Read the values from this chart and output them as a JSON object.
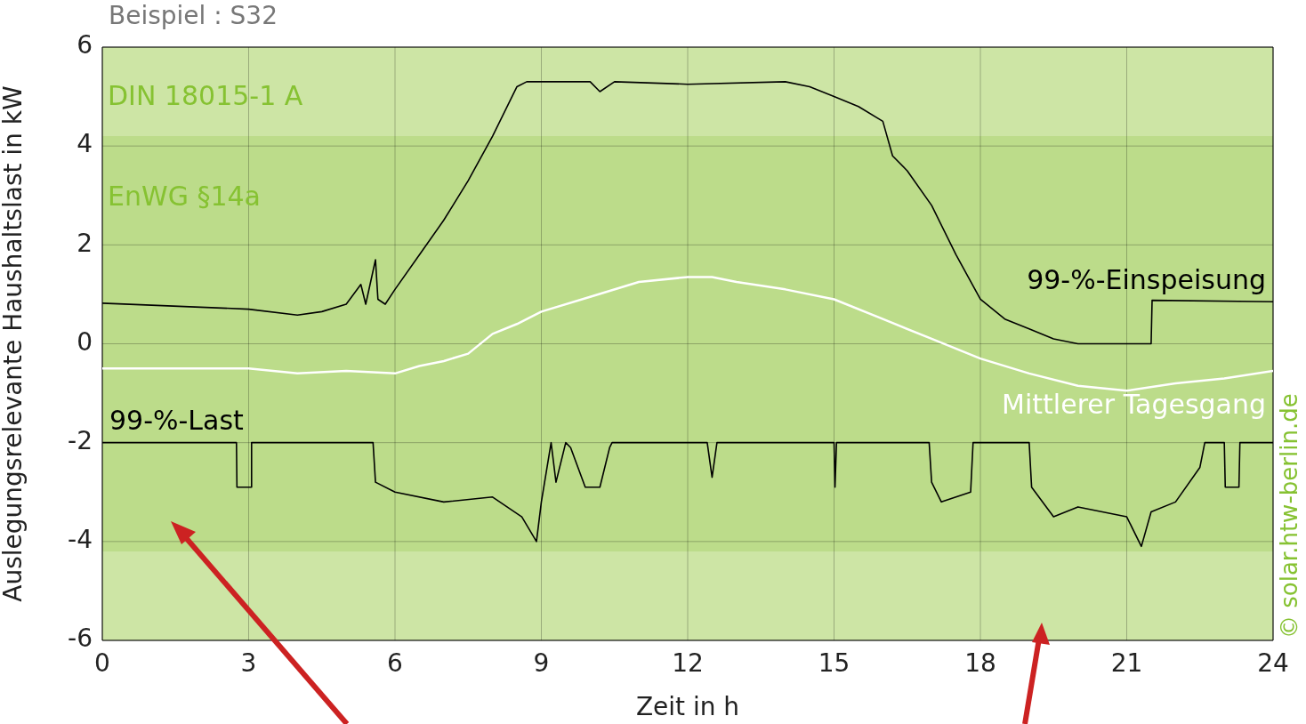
{
  "chart_data": {
    "type": "line",
    "title": "Beispiel : S32",
    "xlabel": "Zeit in h",
    "ylabel": "Auslegungsrelevante Haushaltslast in kW",
    "xlim": [
      0,
      24
    ],
    "xticks": [
      0,
      3,
      6,
      9,
      12,
      15,
      18,
      21,
      24
    ],
    "ylim": [
      -6,
      6
    ],
    "yticks": [
      -6,
      -4,
      -2,
      0,
      2,
      4,
      6
    ],
    "grid": true,
    "legend": false,
    "marker": "none",
    "bands": [
      {
        "axis": "y",
        "from": -6,
        "to": 6,
        "label": "DIN 18015-1 A",
        "color": "#cde5a5"
      },
      {
        "axis": "y",
        "from": -4.2,
        "to": 4.2,
        "label": "EnWG §14a",
        "color": "#bcdc8a"
      }
    ],
    "annotations": [
      "© solar.htw-berlin.de"
    ],
    "series": [
      {
        "name": "99-%-Einspeisung",
        "color": "#000000",
        "x": [
          0,
          3,
          4,
          4.5,
          5,
          5.3,
          5.4,
          5.6,
          5.65,
          5.8,
          6,
          6.5,
          7,
          7.5,
          8,
          8.5,
          8.7,
          10,
          10.2,
          10.5,
          12,
          14,
          14.5,
          15,
          15.5,
          16,
          16.2,
          16.5,
          17,
          17.5,
          18,
          18.5,
          19,
          19.5,
          20,
          21.5,
          21.52,
          24
        ],
        "values": [
          0.82,
          0.7,
          0.58,
          0.65,
          0.8,
          1.2,
          0.8,
          1.7,
          0.9,
          0.8,
          1.1,
          1.8,
          2.5,
          3.3,
          4.2,
          5.2,
          5.3,
          5.3,
          5.1,
          5.3,
          5.25,
          5.3,
          5.2,
          5.0,
          4.8,
          4.5,
          3.8,
          3.5,
          2.8,
          1.8,
          0.9,
          0.5,
          0.3,
          0.1,
          0,
          0,
          0.88,
          0.85
        ]
      },
      {
        "name": "Mittlerer Tagesgang",
        "color": "#ffffff",
        "x": [
          0,
          3,
          4,
          5,
          6,
          6.5,
          7,
          7.5,
          8,
          8.5,
          9,
          10,
          11,
          12,
          12.5,
          13,
          14,
          15,
          16,
          17,
          18,
          19,
          20,
          21,
          22,
          23,
          24
        ],
        "values": [
          -0.5,
          -0.5,
          -0.6,
          -0.55,
          -0.6,
          -0.45,
          -0.35,
          -0.2,
          0.2,
          0.4,
          0.65,
          0.95,
          1.25,
          1.35,
          1.35,
          1.25,
          1.1,
          0.9,
          0.5,
          0.1,
          -0.3,
          -0.6,
          -0.85,
          -0.95,
          -0.8,
          -0.7,
          -0.55
        ]
      },
      {
        "name": "99-%-Last",
        "color": "#000000",
        "x": [
          0,
          2.75,
          2.76,
          3.05,
          3.06,
          5.55,
          5.6,
          6,
          7,
          8,
          8.6,
          8.9,
          9.0,
          9.2,
          9.3,
          9.5,
          9.6,
          9.9,
          10.2,
          10.4,
          10.45,
          12.4,
          12.5,
          12.6,
          15,
          15.02,
          15.05,
          16.95,
          17,
          17.2,
          17.8,
          17.85,
          19,
          19.05,
          19.5,
          20,
          21,
          21.3,
          21.5,
          22,
          22.5,
          22.6,
          23,
          23.02,
          23.3,
          23.32,
          24
        ],
        "values": [
          -2,
          -2,
          -2.9,
          -2.9,
          -2,
          -2,
          -2.8,
          -3.0,
          -3.2,
          -3.1,
          -3.5,
          -4.0,
          -3.2,
          -2,
          -2.8,
          -2,
          -2.1,
          -2.9,
          -2.9,
          -2.1,
          -2,
          -2,
          -2.7,
          -2,
          -2,
          -2.9,
          -2,
          -2,
          -2.8,
          -3.2,
          -3.0,
          -2,
          -2,
          -2.9,
          -3.5,
          -3.3,
          -3.5,
          -4.1,
          -3.4,
          -3.2,
          -2.5,
          -2,
          -2,
          -2.9,
          -2.9,
          -2,
          -2
        ]
      }
    ]
  }
}
